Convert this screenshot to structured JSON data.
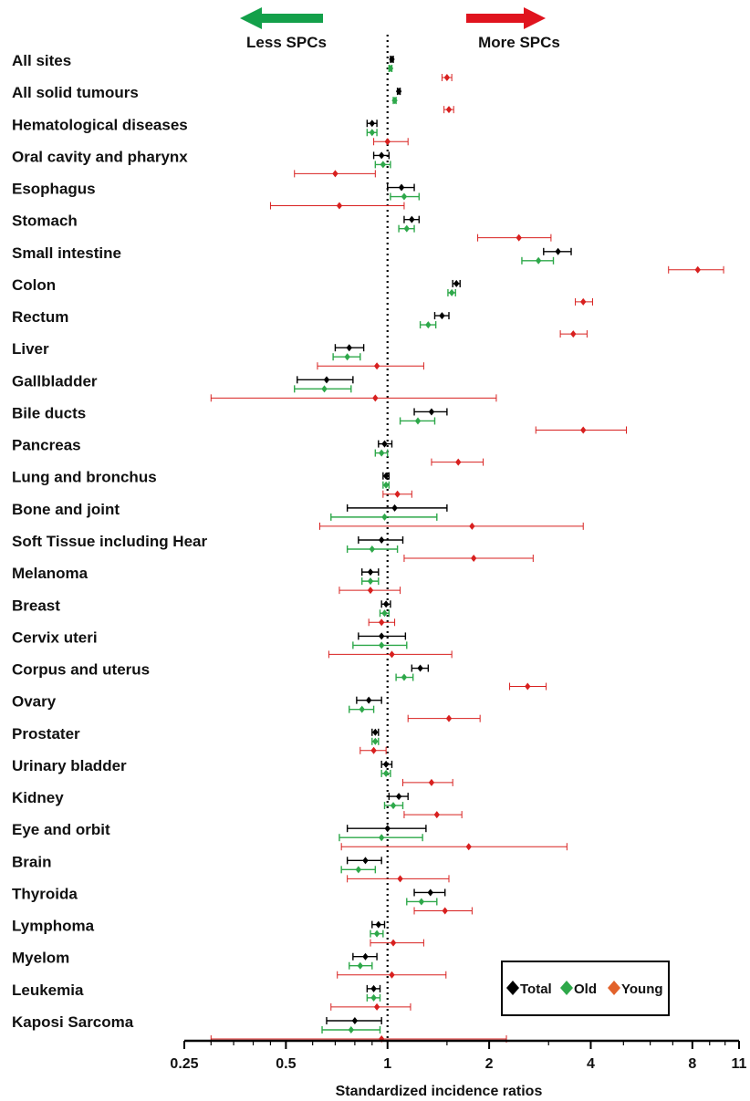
{
  "chart_data": {
    "type": "forest",
    "xlabel": "Standardized incidence ratios",
    "xscale": "log",
    "xlim": [
      0.25,
      11
    ],
    "xticks": [
      0.25,
      0.5,
      1,
      2,
      4,
      8,
      11
    ],
    "xtick_labels": [
      "0.25",
      "0.5",
      "1",
      "2",
      "4",
      "8",
      "11"
    ],
    "reference_line": 1,
    "annotations": {
      "left": "Less SPCs",
      "right": "More SPCs",
      "left_color": "#13a04a",
      "right_color": "#e0141e"
    },
    "legend": {
      "position": "bottom-right",
      "entries": [
        {
          "name": "Total",
          "color": "#000000"
        },
        {
          "name": "Old",
          "color": "#2ea84a"
        },
        {
          "name": "Young",
          "color": "#e2622b"
        }
      ]
    },
    "series_colors": {
      "total": "#000000",
      "old": "#2ea84a",
      "young": "#d8201f"
    },
    "categories": [
      {
        "label": "All sites",
        "total": [
          1.03,
          1.02,
          1.04
        ],
        "old": [
          1.02,
          1.01,
          1.03
        ],
        "young": [
          1.5,
          1.45,
          1.55
        ]
      },
      {
        "label": "All solid tumours",
        "total": [
          1.08,
          1.07,
          1.09
        ],
        "old": [
          1.05,
          1.04,
          1.06
        ],
        "young": [
          1.52,
          1.47,
          1.57
        ]
      },
      {
        "label": "Hematological diseases",
        "total": [
          0.9,
          0.87,
          0.93
        ],
        "old": [
          0.9,
          0.87,
          0.93
        ],
        "young": [
          1.0,
          0.91,
          1.15
        ]
      },
      {
        "label": "Oral cavity and pharynx",
        "total": [
          0.96,
          0.91,
          1.01
        ],
        "old": [
          0.97,
          0.92,
          1.02
        ],
        "young": [
          0.7,
          0.53,
          0.92
        ]
      },
      {
        "label": "Esophagus",
        "total": [
          1.1,
          1.0,
          1.2
        ],
        "old": [
          1.12,
          1.02,
          1.24
        ],
        "young": [
          0.72,
          0.45,
          1.12
        ]
      },
      {
        "label": "Stomach",
        "total": [
          1.18,
          1.12,
          1.24
        ],
        "old": [
          1.14,
          1.08,
          1.2
        ],
        "young": [
          2.45,
          1.85,
          3.05
        ]
      },
      {
        "label": "Small intestine",
        "total": [
          3.2,
          2.9,
          3.5
        ],
        "old": [
          2.8,
          2.5,
          3.1
        ],
        "young": [
          8.3,
          6.8,
          9.9
        ]
      },
      {
        "label": "Colon",
        "total": [
          1.6,
          1.56,
          1.64
        ],
        "old": [
          1.55,
          1.51,
          1.59
        ],
        "young": [
          3.8,
          3.6,
          4.05
        ]
      },
      {
        "label": "Rectum",
        "total": [
          1.45,
          1.38,
          1.52
        ],
        "old": [
          1.32,
          1.25,
          1.39
        ],
        "young": [
          3.55,
          3.25,
          3.9
        ]
      },
      {
        "label": "Liver",
        "total": [
          0.77,
          0.7,
          0.85
        ],
        "old": [
          0.76,
          0.69,
          0.83
        ],
        "young": [
          0.93,
          0.62,
          1.28
        ]
      },
      {
        "label": "Gallbladder",
        "total": [
          0.66,
          0.54,
          0.79
        ],
        "old": [
          0.65,
          0.53,
          0.78
        ],
        "young": [
          0.92,
          0.3,
          2.1
        ]
      },
      {
        "label": "Bile ducts",
        "total": [
          1.35,
          1.2,
          1.5
        ],
        "old": [
          1.23,
          1.09,
          1.38
        ],
        "young": [
          3.8,
          2.75,
          5.1
        ]
      },
      {
        "label": "Pancreas",
        "total": [
          0.98,
          0.94,
          1.03
        ],
        "old": [
          0.96,
          0.92,
          1.0
        ],
        "young": [
          1.62,
          1.35,
          1.92
        ]
      },
      {
        "label": "Lung and bronchus",
        "total": [
          0.99,
          0.97,
          1.01
        ],
        "old": [
          0.99,
          0.97,
          1.01
        ],
        "young": [
          1.07,
          0.97,
          1.18
        ]
      },
      {
        "label": "Bone and joint",
        "total": [
          1.05,
          0.76,
          1.5
        ],
        "old": [
          0.98,
          0.68,
          1.4
        ],
        "young": [
          1.78,
          0.63,
          3.8
        ]
      },
      {
        "label": "Soft Tissue including Hear",
        "total": [
          0.96,
          0.82,
          1.11
        ],
        "old": [
          0.9,
          0.76,
          1.07
        ],
        "young": [
          1.8,
          1.12,
          2.7
        ]
      },
      {
        "label": "Melanoma",
        "total": [
          0.89,
          0.84,
          0.94
        ],
        "old": [
          0.89,
          0.84,
          0.94
        ],
        "young": [
          0.89,
          0.72,
          1.09
        ]
      },
      {
        "label": "Breast",
        "total": [
          0.99,
          0.96,
          1.02
        ],
        "old": [
          0.98,
          0.95,
          1.01
        ],
        "young": [
          0.96,
          0.88,
          1.05
        ]
      },
      {
        "label": "Cervix uteri",
        "total": [
          0.96,
          0.82,
          1.13
        ],
        "old": [
          0.96,
          0.79,
          1.14
        ],
        "young": [
          1.03,
          0.67,
          1.55
        ]
      },
      {
        "label": "Corpus and uterus",
        "total": [
          1.25,
          1.18,
          1.32
        ],
        "old": [
          1.12,
          1.06,
          1.19
        ],
        "young": [
          2.6,
          2.3,
          2.95
        ]
      },
      {
        "label": "Ovary",
        "total": [
          0.88,
          0.81,
          0.96
        ],
        "old": [
          0.84,
          0.77,
          0.91
        ],
        "young": [
          1.52,
          1.15,
          1.88
        ]
      },
      {
        "label": "Prostater",
        "total": [
          0.92,
          0.9,
          0.94
        ],
        "old": [
          0.92,
          0.9,
          0.94
        ],
        "young": [
          0.91,
          0.83,
          0.99
        ]
      },
      {
        "label": "Urinary bladder",
        "total": [
          0.99,
          0.96,
          1.03
        ],
        "old": [
          0.99,
          0.96,
          1.02
        ],
        "young": [
          1.35,
          1.11,
          1.56
        ]
      },
      {
        "label": "Kidney",
        "total": [
          1.08,
          1.01,
          1.15
        ],
        "old": [
          1.04,
          0.98,
          1.11
        ],
        "young": [
          1.4,
          1.12,
          1.66
        ]
      },
      {
        "label": "Eye and orbit",
        "total": [
          1.0,
          0.76,
          1.3
        ],
        "old": [
          0.96,
          0.72,
          1.27
        ],
        "young": [
          1.74,
          0.73,
          3.4
        ]
      },
      {
        "label": "Brain",
        "total": [
          0.86,
          0.76,
          0.96
        ],
        "old": [
          0.82,
          0.73,
          0.92
        ],
        "young": [
          1.09,
          0.76,
          1.52
        ]
      },
      {
        "label": "Thyroida",
        "total": [
          1.34,
          1.2,
          1.48
        ],
        "old": [
          1.26,
          1.14,
          1.4
        ],
        "young": [
          1.48,
          1.2,
          1.78
        ]
      },
      {
        "label": "Lymphoma",
        "total": [
          0.94,
          0.9,
          0.98
        ],
        "old": [
          0.93,
          0.89,
          0.97
        ],
        "young": [
          1.04,
          0.89,
          1.28
        ]
      },
      {
        "label": "Myelom",
        "total": [
          0.86,
          0.79,
          0.93
        ],
        "old": [
          0.83,
          0.77,
          0.9
        ],
        "young": [
          1.03,
          0.71,
          1.49
        ]
      },
      {
        "label": "Leukemia",
        "total": [
          0.91,
          0.87,
          0.95
        ],
        "old": [
          0.91,
          0.87,
          0.95
        ],
        "young": [
          0.93,
          0.68,
          1.17
        ]
      },
      {
        "label": "Kaposi Sarcoma",
        "total": [
          0.8,
          0.66,
          0.96
        ],
        "old": [
          0.78,
          0.64,
          0.95
        ],
        "young": [
          0.96,
          0.3,
          2.25
        ]
      }
    ]
  }
}
